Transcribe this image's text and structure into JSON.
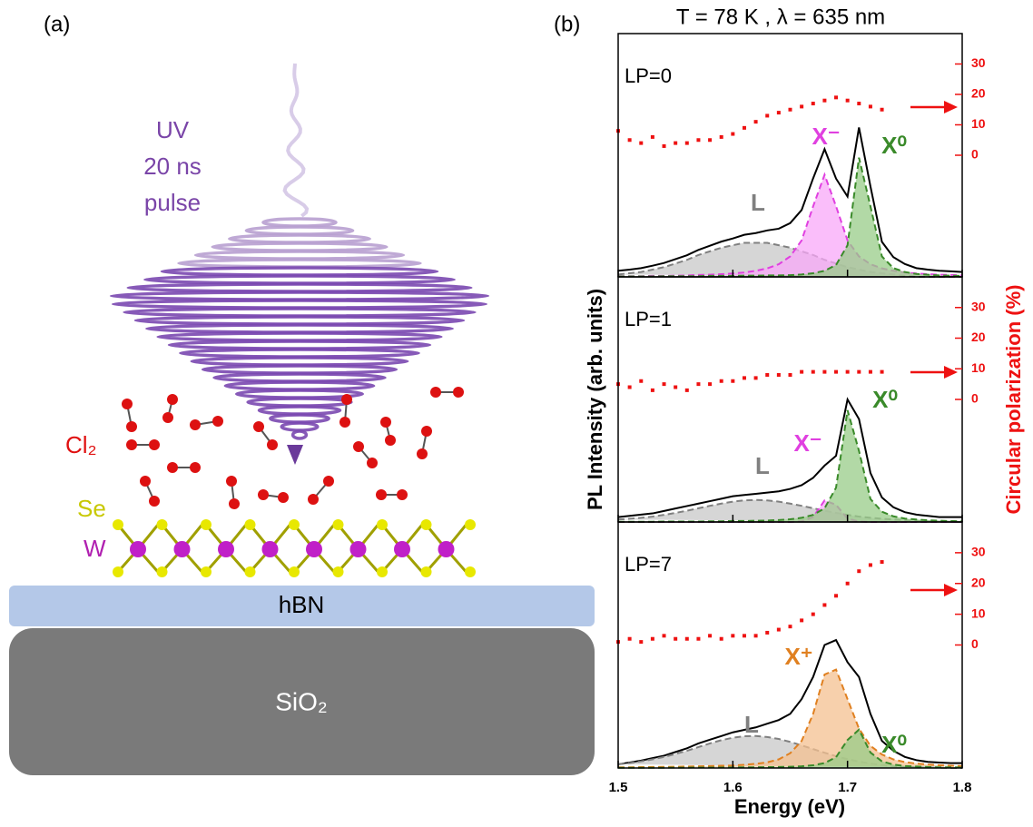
{
  "panel_a": {
    "label": "(a)",
    "uv_label": [
      "UV",
      "20 ns",
      "pulse"
    ],
    "molecule": "Cl₂",
    "atoms": [
      "Se",
      "W"
    ],
    "layers": [
      "hBN",
      "SiO₂"
    ]
  },
  "panel_b": {
    "label": "(b)",
    "title": "T = 78 K , λ = 635 nm",
    "x_label": "Energy (eV)",
    "y_label": "PL Intensity (arb. units)",
    "y2_label": "Circular polarization (%)"
  },
  "chart_data": [
    {
      "type": "line",
      "label": "LP=0",
      "x": [
        1.5,
        1.51,
        1.52,
        1.53,
        1.54,
        1.55,
        1.56,
        1.57,
        1.58,
        1.59,
        1.6,
        1.61,
        1.62,
        1.63,
        1.64,
        1.65,
        1.66,
        1.67,
        1.68,
        1.69,
        1.7,
        1.71,
        1.72,
        1.73,
        1.74,
        1.75,
        1.76,
        1.77,
        1.78,
        1.79,
        1.8
      ],
      "xlim": [
        1.5,
        1.8
      ],
      "xticks": [
        1.5,
        1.6,
        1.7,
        1.8
      ],
      "ylim": [
        0,
        100
      ],
      "y2lim": [
        -40,
        40
      ],
      "y2ticks": [
        0,
        10,
        20,
        30
      ],
      "series": [
        {
          "color": "#000000",
          "values": [
            2.5,
            3,
            3.6,
            4.6,
            5.7,
            7.3,
            8.9,
            11.1,
            12.8,
            14.5,
            15.8,
            17.3,
            18,
            19.1,
            19.8,
            22.1,
            27.5,
            40.5,
            52.5,
            40.4,
            33,
            61.4,
            37.2,
            14.4,
            8.1,
            5.3,
            3.6,
            3,
            2.5,
            2.3,
            2
          ]
        },
        {
          "name": "L",
          "color": "#808080",
          "fill": "#c8c8c8",
          "dashed": true,
          "values": [
            1,
            1.5,
            2,
            3,
            4,
            5.5,
            7,
            9,
            10.5,
            12,
            13,
            14,
            14,
            14,
            13,
            12,
            10.5,
            9,
            7,
            5.5,
            4,
            3,
            2,
            1.5,
            1,
            0.5,
            0,
            0,
            0,
            0,
            0
          ]
        },
        {
          "name": "X⁻",
          "color": "#e040e0",
          "fill": "#f8a8f8",
          "dashed": true,
          "values": [
            0.3,
            0.3,
            0.3,
            0.4,
            0.4,
            0.5,
            0.6,
            0.8,
            0.9,
            1.1,
            1.4,
            1.8,
            2.5,
            3.5,
            5.2,
            8.4,
            15,
            29,
            42,
            29,
            15,
            8.4,
            5.2,
            3.5,
            2.5,
            1.8,
            1.4,
            1.1,
            0.9,
            0.8,
            0.6
          ]
        },
        {
          "name": "X⁰",
          "color": "#3a8a2a",
          "fill": "#98cc88",
          "dashed": true,
          "values": [
            0.2,
            0.2,
            0.2,
            0.2,
            0.3,
            0.3,
            0.3,
            0.3,
            0.4,
            0.4,
            0.4,
            0.5,
            0.5,
            0.6,
            0.6,
            0.7,
            1,
            1.5,
            2.5,
            4.9,
            13,
            49,
            29,
            8.4,
            3.6,
            2,
            1.2,
            0.9,
            0.6,
            0.5,
            0.4
          ]
        },
        {
          "axis": "y2",
          "color": "#ee1111",
          "marker": "square",
          "x": [
            1.5,
            1.51,
            1.52,
            1.53,
            1.54,
            1.55,
            1.56,
            1.57,
            1.58,
            1.59,
            1.6,
            1.61,
            1.62,
            1.63,
            1.64,
            1.65,
            1.66,
            1.67,
            1.68,
            1.69,
            1.7,
            1.71,
            1.72,
            1.73
          ],
          "values": [
            8,
            5,
            4,
            6,
            3,
            4,
            4,
            5,
            5,
            6,
            7,
            9,
            11,
            13,
            14,
            15,
            16,
            17,
            18,
            19,
            18,
            17,
            16,
            15
          ]
        }
      ]
    },
    {
      "type": "line",
      "label": "LP=1",
      "x": [
        1.5,
        1.51,
        1.52,
        1.53,
        1.54,
        1.55,
        1.56,
        1.57,
        1.58,
        1.59,
        1.6,
        1.61,
        1.62,
        1.63,
        1.64,
        1.65,
        1.66,
        1.67,
        1.68,
        1.69,
        1.7,
        1.71,
        1.72,
        1.73,
        1.74,
        1.75,
        1.76,
        1.77,
        1.78,
        1.79,
        1.8
      ],
      "xlim": [
        1.5,
        1.8
      ],
      "xticks": [
        1.5,
        1.6,
        1.7,
        1.8
      ],
      "ylim": [
        0,
        100
      ],
      "y2lim": [
        -40,
        40
      ],
      "y2ticks": [
        0,
        10,
        20,
        30
      ],
      "series": [
        {
          "color": "#000000",
          "values": [
            2,
            2.5,
            3,
            3.5,
            4.5,
            5.5,
            6.5,
            7.5,
            8.5,
            9.5,
            10.5,
            11,
            11.5,
            12,
            12.5,
            13.5,
            15,
            18,
            23,
            27,
            50,
            42,
            20,
            10,
            6,
            4,
            3,
            2.5,
            2,
            2,
            2
          ]
        },
        {
          "name": "L",
          "color": "#808080",
          "fill": "#c8c8c8",
          "dashed": true,
          "values": [
            1,
            1.3,
            1.7,
            2.2,
            2.9,
            3.7,
            4.6,
            5.6,
            6.6,
            7.5,
            8.3,
            8.8,
            9,
            8.8,
            8.3,
            7.5,
            6.6,
            5.6,
            4.6,
            3.7,
            2.9,
            2.2,
            1.7,
            1.3,
            1,
            0.7,
            0.5,
            0.3,
            0.2,
            0.1,
            0
          ]
        },
        {
          "name": "X⁻",
          "color": "#e040e0",
          "fill": "#f8a8f8",
          "dashed": true,
          "values": [
            0,
            0,
            0,
            0,
            0,
            0,
            0,
            0,
            0,
            0,
            0,
            0,
            0,
            0,
            0,
            0,
            0.3,
            2,
            8.8,
            7,
            1.4,
            0.2,
            0,
            0,
            0,
            0,
            0,
            0,
            0,
            0,
            0
          ]
        },
        {
          "name": "X⁰",
          "color": "#3a8a2a",
          "fill": "#98cc88",
          "dashed": true,
          "values": [
            0.1,
            0.1,
            0.1,
            0.1,
            0.2,
            0.2,
            0.2,
            0.2,
            0.3,
            0.3,
            0.4,
            0.4,
            0.5,
            0.6,
            0.8,
            1.1,
            1.7,
            2.9,
            5.6,
            14,
            45.6,
            29,
            9.4,
            4.2,
            2.3,
            1.4,
            1,
            0.7,
            0.5,
            0.4,
            0.3
          ]
        },
        {
          "axis": "y2",
          "color": "#ee1111",
          "marker": "square",
          "x": [
            1.5,
            1.51,
            1.52,
            1.53,
            1.54,
            1.55,
            1.56,
            1.57,
            1.58,
            1.59,
            1.6,
            1.61,
            1.62,
            1.63,
            1.64,
            1.65,
            1.66,
            1.67,
            1.68,
            1.69,
            1.7,
            1.71,
            1.72,
            1.73
          ],
          "values": [
            5,
            4,
            6,
            3,
            5,
            4,
            3,
            5,
            5,
            6,
            6,
            7,
            7,
            8,
            8,
            8,
            9,
            9,
            9,
            9,
            9,
            9,
            9,
            9
          ]
        }
      ]
    },
    {
      "type": "line",
      "label": "LP=7",
      "x": [
        1.5,
        1.51,
        1.52,
        1.53,
        1.54,
        1.55,
        1.56,
        1.57,
        1.58,
        1.59,
        1.6,
        1.61,
        1.62,
        1.63,
        1.64,
        1.65,
        1.66,
        1.67,
        1.68,
        1.69,
        1.7,
        1.71,
        1.72,
        1.73,
        1.74,
        1.75,
        1.76,
        1.77,
        1.78,
        1.79,
        1.8
      ],
      "xlim": [
        1.5,
        1.8
      ],
      "xticks": [
        1.5,
        1.6,
        1.7,
        1.8
      ],
      "ylim": [
        0,
        100
      ],
      "y2lim": [
        -40,
        40
      ],
      "y2ticks": [
        0,
        10,
        20,
        30
      ],
      "series": [
        {
          "color": "#000000",
          "values": [
            1.5,
            2.2,
            3,
            4,
            5,
            6.5,
            8,
            10,
            11.5,
            13,
            14.5,
            15.5,
            16.5,
            18,
            19.5,
            22,
            28,
            37,
            50,
            52,
            43,
            37,
            22,
            11,
            7,
            4.5,
            3.2,
            2.5,
            2.2,
            2,
            2
          ]
        },
        {
          "name": "L",
          "color": "#808080",
          "fill": "#c8c8c8",
          "dashed": true,
          "values": [
            1.5,
            2,
            2.7,
            3.5,
            4.5,
            5.7,
            7,
            8.5,
            10,
            11.3,
            12.3,
            12.9,
            13,
            12.6,
            11.8,
            10.6,
            9.2,
            7.7,
            6.2,
            4.8,
            3.6,
            2.6,
            1.8,
            1.2,
            0.8,
            0.5,
            0.3,
            0.2,
            0.1,
            0,
            0
          ]
        },
        {
          "name": "X⁺",
          "color": "#e08020",
          "fill": "#f4c090",
          "dashed": true,
          "values": [
            0.3,
            0.3,
            0.35,
            0.4,
            0.45,
            0.5,
            0.6,
            0.7,
            0.8,
            0.9,
            1,
            1.3,
            1.7,
            2.3,
            3.5,
            6,
            11,
            22,
            38,
            40,
            28,
            16,
            9,
            5.5,
            3.5,
            2.4,
            1.8,
            1.4,
            1.1,
            0.9,
            0.8
          ]
        },
        {
          "name": "X⁰",
          "color": "#3a8a2a",
          "fill": "#98cc88",
          "dashed": true,
          "values": [
            0.1,
            0.1,
            0.1,
            0.1,
            0.1,
            0.15,
            0.15,
            0.2,
            0.2,
            0.2,
            0.25,
            0.3,
            0.3,
            0.35,
            0.4,
            0.5,
            0.7,
            1.1,
            2,
            4.4,
            11.4,
            15.6,
            6.3,
            2.7,
            1.4,
            0.8,
            0.6,
            0.4,
            0.3,
            0.3,
            0.2
          ]
        },
        {
          "axis": "y2",
          "color": "#ee1111",
          "marker": "square",
          "x": [
            1.5,
            1.51,
            1.52,
            1.53,
            1.54,
            1.55,
            1.56,
            1.57,
            1.58,
            1.59,
            1.6,
            1.61,
            1.62,
            1.63,
            1.64,
            1.65,
            1.66,
            1.67,
            1.68,
            1.69,
            1.7,
            1.71,
            1.72,
            1.73
          ],
          "values": [
            1,
            2,
            1,
            2,
            3,
            2,
            2,
            2,
            3,
            2,
            3,
            3,
            3,
            4,
            5,
            6,
            8,
            10,
            13,
            16,
            20,
            24,
            26,
            27
          ]
        }
      ]
    }
  ]
}
